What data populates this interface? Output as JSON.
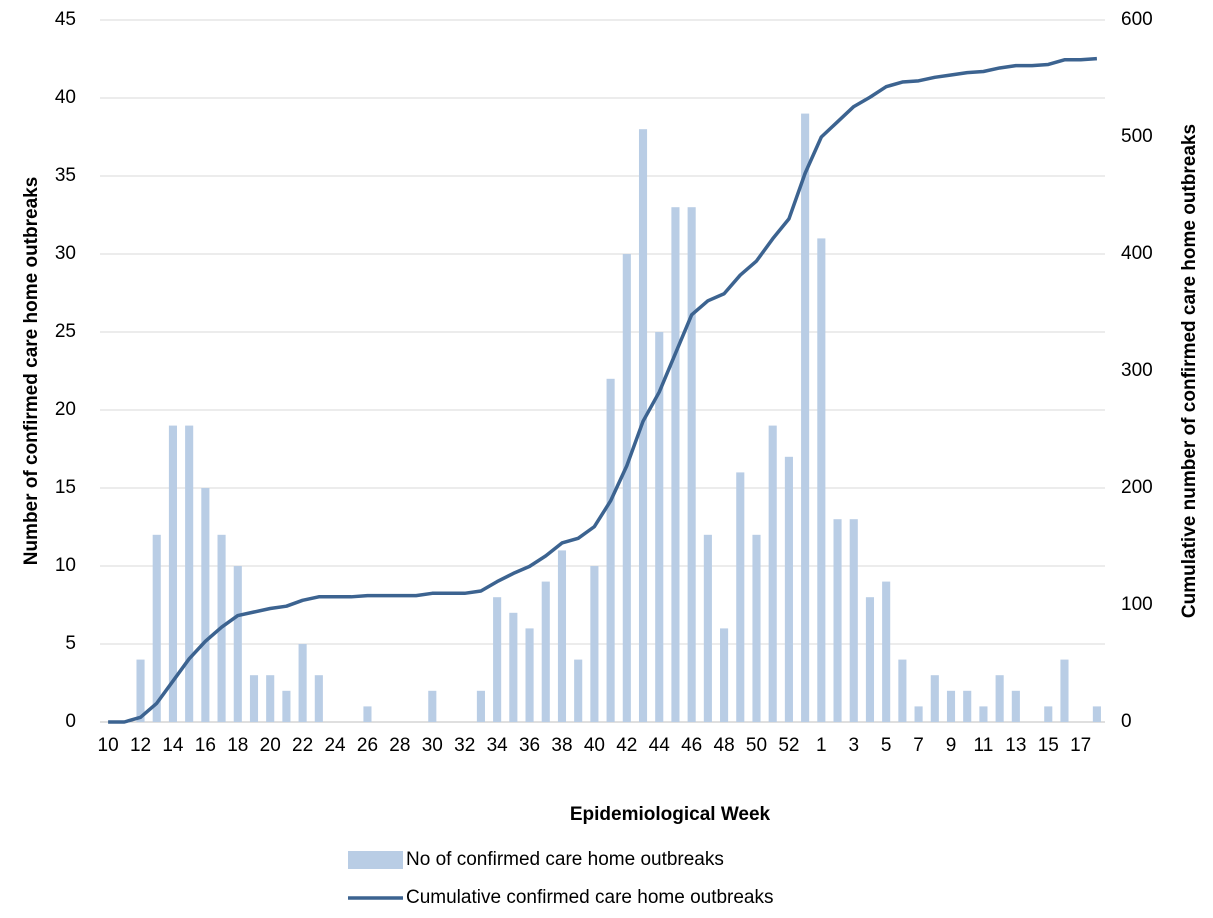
{
  "chart_data": {
    "type": "bar-line",
    "x_label": "Epidemiological Week",
    "y_label": "Number of confirmed care home outbreaks",
    "y2_label": "Cumulative number of confirmed care home outbreaks",
    "categories": [
      "10",
      null,
      "12",
      null,
      "14",
      null,
      "16",
      null,
      "18",
      null,
      "20",
      null,
      "22",
      null,
      "24",
      null,
      "26",
      null,
      "28",
      null,
      "30",
      null,
      "32",
      null,
      "34",
      null,
      "36",
      null,
      "38",
      null,
      "40",
      null,
      "42",
      null,
      "44",
      null,
      "46",
      null,
      "48",
      null,
      "50",
      null,
      "52",
      null,
      "1",
      null,
      "3",
      null,
      "5",
      null,
      "7",
      null,
      "9",
      null,
      "11",
      null,
      "13",
      null,
      "15",
      null,
      "17",
      null
    ],
    "series": [
      {
        "name": "No of confirmed care home outbreaks",
        "type": "bar",
        "color": "#b9cde5",
        "values": [
          0,
          0,
          4,
          12,
          19,
          19,
          15,
          12,
          10,
          3,
          3,
          2,
          5,
          3,
          0,
          0,
          1,
          0,
          0,
          0,
          2,
          0,
          0,
          2,
          8,
          7,
          6,
          9,
          11,
          4,
          10,
          22,
          30,
          38,
          25,
          33,
          33,
          12,
          6,
          16,
          12,
          19,
          17,
          39,
          31,
          13,
          13,
          8,
          9,
          4,
          1,
          3,
          2,
          2,
          1,
          3,
          2,
          0,
          1,
          4,
          0,
          1
        ]
      },
      {
        "name": "Cumulative confirmed care home outbreaks",
        "type": "line",
        "axis": "y2",
        "color": "#3c6390",
        "values": [
          0,
          0,
          4,
          16,
          35,
          54,
          69,
          81,
          91,
          94,
          97,
          99,
          104,
          107,
          107,
          107,
          108,
          108,
          108,
          108,
          110,
          110,
          110,
          112,
          120,
          127,
          133,
          142,
          153,
          157,
          167,
          189,
          219,
          257,
          282,
          315,
          348,
          360,
          366,
          382,
          394,
          413,
          430,
          469,
          500,
          513,
          526,
          534,
          543,
          547,
          548,
          551,
          553,
          555,
          556,
          559,
          561,
          561,
          562,
          566,
          566,
          567
        ]
      }
    ],
    "ylim": [
      0,
      45
    ],
    "yticks": [
      0,
      5,
      10,
      15,
      20,
      25,
      30,
      35,
      40,
      45
    ],
    "y2lim": [
      0,
      600
    ],
    "y2ticks": [
      0,
      100,
      200,
      300,
      400,
      500,
      600
    ],
    "grid": true,
    "legend": "bottom"
  }
}
